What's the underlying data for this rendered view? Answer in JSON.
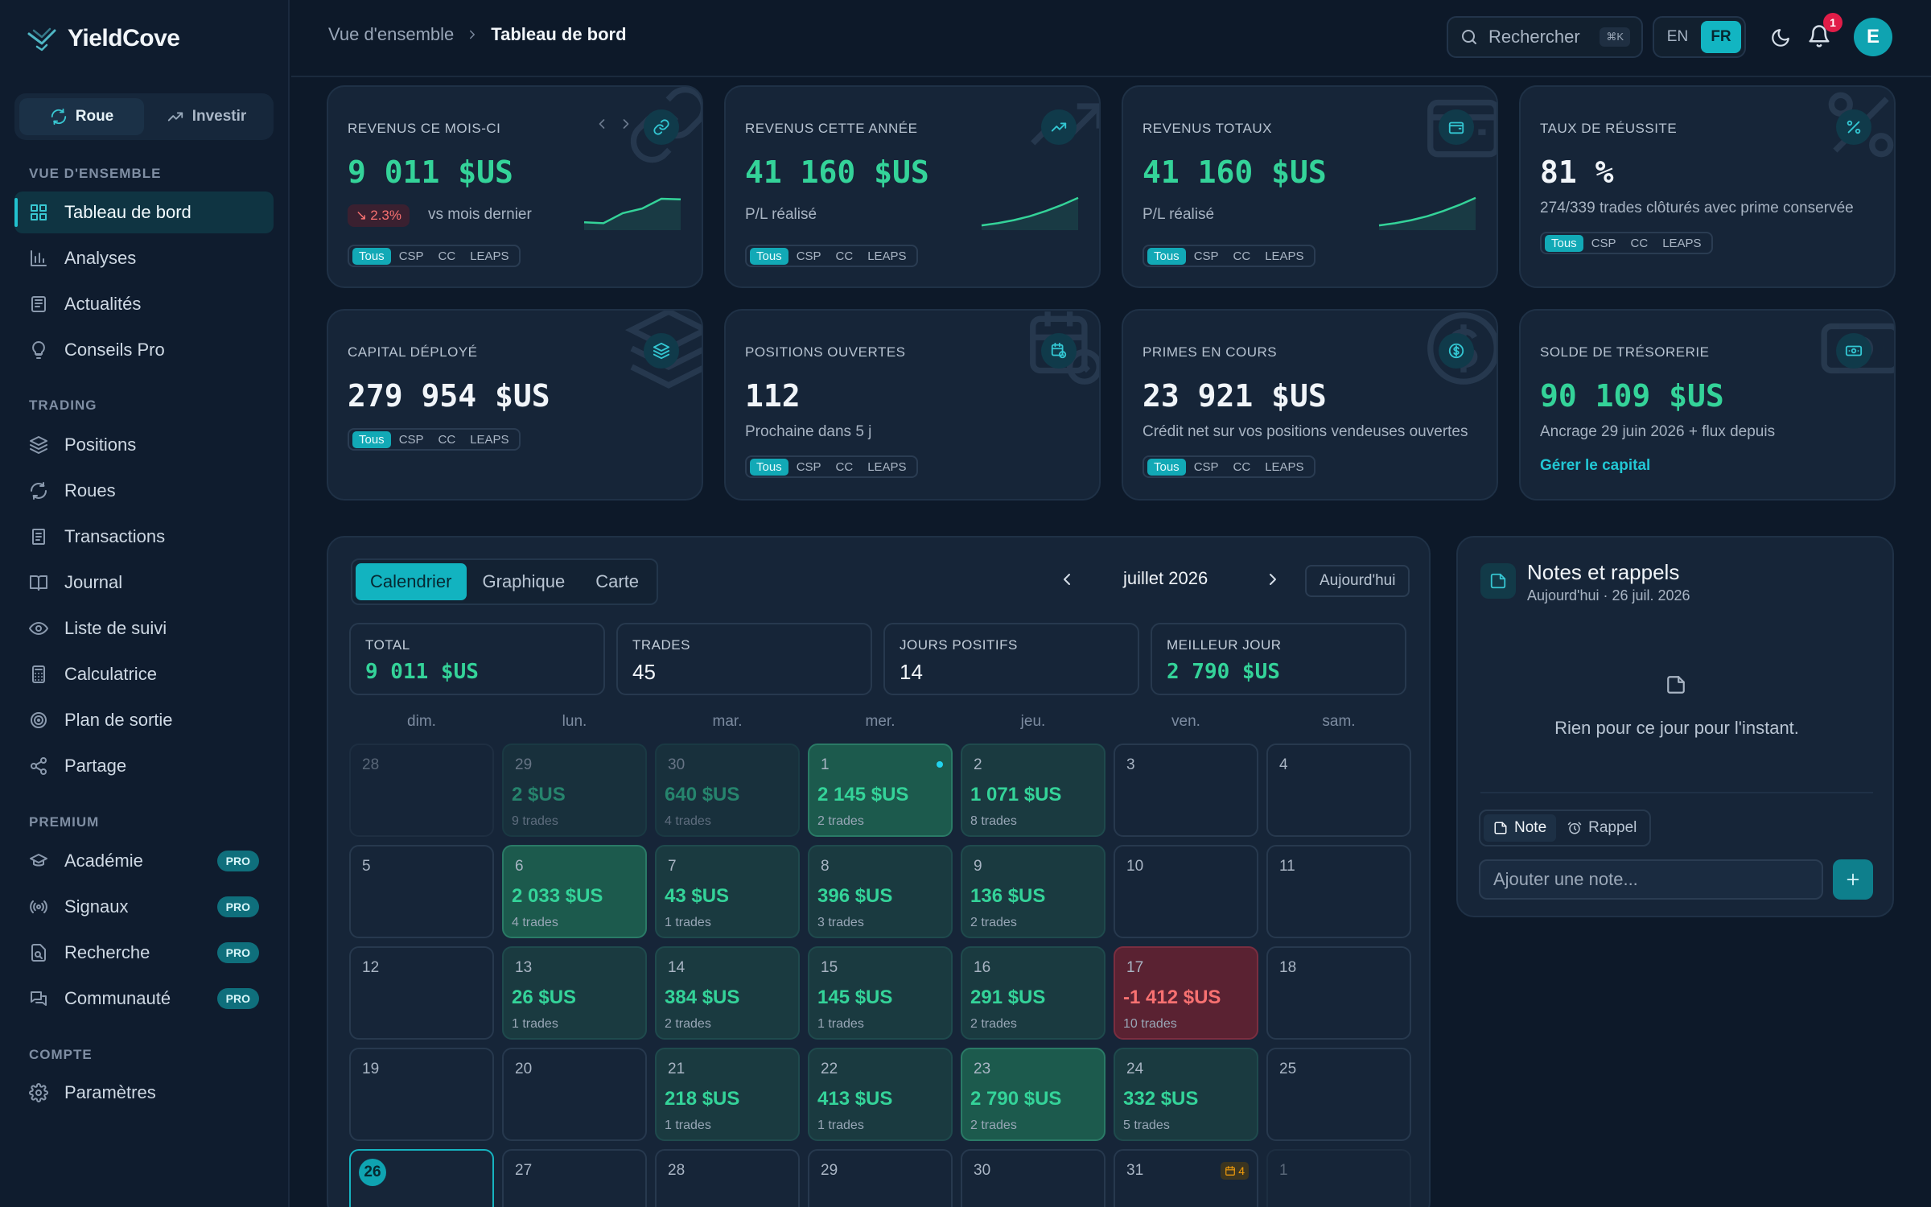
{
  "app": {
    "name": "YieldCove"
  },
  "sidebar": {
    "modes": [
      {
        "label": "Roue",
        "icon": "refresh-icon"
      },
      {
        "label": "Investir",
        "icon": "trend-icon"
      }
    ],
    "sections": {
      "overview": "VUE D'ENSEMBLE",
      "trading": "TRADING",
      "premium": "PREMIUM",
      "account": "COMPTE"
    },
    "overview_items": [
      {
        "label": "Tableau de bord",
        "icon": "dashboard-icon"
      },
      {
        "label": "Analyses",
        "icon": "bar-chart-icon"
      },
      {
        "label": "Actualités",
        "icon": "newspaper-icon"
      },
      {
        "label": "Conseils Pro",
        "icon": "lightbulb-icon"
      }
    ],
    "trading_items": [
      {
        "label": "Positions",
        "icon": "layers-icon"
      },
      {
        "label": "Roues",
        "icon": "refresh-icon"
      },
      {
        "label": "Transactions",
        "icon": "receipt-icon"
      },
      {
        "label": "Journal",
        "icon": "book-icon"
      },
      {
        "label": "Liste de suivi",
        "icon": "eye-icon"
      },
      {
        "label": "Calculatrice",
        "icon": "calculator-icon"
      },
      {
        "label": "Plan de sortie",
        "icon": "target-icon"
      },
      {
        "label": "Partage",
        "icon": "share-icon"
      }
    ],
    "premium_items": [
      {
        "label": "Académie",
        "icon": "graduation-cap-icon",
        "badge": "PRO"
      },
      {
        "label": "Signaux",
        "icon": "radio-icon",
        "badge": "PRO"
      },
      {
        "label": "Recherche",
        "icon": "file-search-icon",
        "badge": "PRO"
      },
      {
        "label": "Communauté",
        "icon": "chat-icon",
        "badge": "PRO"
      }
    ],
    "account_items": [
      {
        "label": "Paramètres",
        "icon": "gear-icon"
      }
    ]
  },
  "topbar": {
    "breadcrumb": [
      "Vue d'ensemble",
      "Tableau de bord"
    ],
    "search_placeholder": "Rechercher",
    "search_shortcut": "⌘K",
    "lang_options": [
      "EN",
      "FR"
    ],
    "lang_selected": "FR",
    "notifications_count": "1",
    "avatar_initial": "E"
  },
  "cards": [
    {
      "label": "REVENUS CE MOIS-CI",
      "value": "9 011  $US",
      "delta": "2.3%",
      "delta_note": "vs mois dernier",
      "icon": "link-icon",
      "chips": [
        "Tous",
        "CSP",
        "CC",
        "LEAPS"
      ]
    },
    {
      "label": "REVENUS CETTE ANNÉE",
      "value": "41 160  $US",
      "sub": "P/L réalisé",
      "icon": "trend-up-icon",
      "chips": [
        "Tous",
        "CSP",
        "CC",
        "LEAPS"
      ]
    },
    {
      "label": "REVENUS TOTAUX",
      "value": "41 160  $US",
      "sub": "P/L réalisé",
      "icon": "wallet-icon",
      "chips": [
        "Tous",
        "CSP",
        "CC",
        "LEAPS"
      ]
    },
    {
      "label": "TAUX DE RÉUSSITE",
      "value": "81  %",
      "sub": "274/339 trades clôturés avec prime conservée",
      "icon": "percent-icon",
      "chips": [
        "Tous",
        "CSP",
        "CC",
        "LEAPS"
      ]
    },
    {
      "label": "CAPITAL DÉPLOYÉ",
      "value": "279 954  $US",
      "icon": "layers-icon",
      "chips": [
        "Tous",
        "CSP",
        "CC",
        "LEAPS"
      ]
    },
    {
      "label": "POSITIONS OUVERTES",
      "value": "112",
      "sub": "Prochaine dans 5 j",
      "icon": "calendar-clock-icon",
      "chips": [
        "Tous",
        "CSP",
        "CC",
        "LEAPS"
      ]
    },
    {
      "label": "PRIMES EN COURS",
      "value": "23 921  $US",
      "sub": "Crédit net sur vos positions vendeuses ouvertes",
      "icon": "dollar-circle-icon",
      "chips": [
        "Tous",
        "CSP",
        "CC",
        "LEAPS"
      ]
    },
    {
      "label": "SOLDE DE TRÉSORERIE",
      "value": "90 109  $US",
      "sub": "Ancrage 29 juin 2026 + flux depuis",
      "link": "Gérer le capital",
      "icon": "banknote-icon"
    }
  ],
  "sparklines": [
    [
      0.15,
      0.12,
      0.45,
      0.6,
      0.92,
      0.9
    ],
    [
      0.05,
      0.12,
      0.22,
      0.35,
      0.52,
      0.72,
      0.95
    ],
    [
      0.05,
      0.12,
      0.22,
      0.35,
      0.52,
      0.72,
      0.95
    ]
  ],
  "colors": {
    "accent": "#12b3c0",
    "positive": "#34d399",
    "negative": "#f87171",
    "background": "#0d1929"
  },
  "calendar": {
    "tabs": [
      "Calendrier",
      "Graphique",
      "Carte"
    ],
    "active_tab": "Calendrier",
    "month": "juillet 2026",
    "today_label": "Aujourd'hui",
    "stats": [
      {
        "label": "TOTAL",
        "value": "9 011  $US"
      },
      {
        "label": "TRADES",
        "value": "45"
      },
      {
        "label": "JOURS POSITIFS",
        "value": "14"
      },
      {
        "label": "MEILLEUR JOUR",
        "value": "2 790  $US"
      }
    ],
    "weekdays": [
      "dim.",
      "lun.",
      "mar.",
      "mer.",
      "jeu.",
      "ven.",
      "sam."
    ],
    "weeks": [
      [
        {
          "d": "28",
          "o": true
        },
        {
          "d": "29",
          "o": true,
          "amt": "2 $US",
          "tr": "9 trades"
        },
        {
          "d": "30",
          "o": true,
          "amt": "640 $US",
          "tr": "4 trades"
        },
        {
          "d": "1",
          "amt": "2 145 $US",
          "tr": "2 trades",
          "strong": true,
          "dot": true
        },
        {
          "d": "2",
          "amt": "1 071 $US",
          "tr": "8 trades"
        },
        {
          "d": "3"
        },
        {
          "d": "4"
        }
      ],
      [
        {
          "d": "5"
        },
        {
          "d": "6",
          "amt": "2 033 $US",
          "tr": "4 trades",
          "strong": true
        },
        {
          "d": "7",
          "amt": "43 $US",
          "tr": "1 trades"
        },
        {
          "d": "8",
          "amt": "396 $US",
          "tr": "3 trades"
        },
        {
          "d": "9",
          "amt": "136 $US",
          "tr": "2 trades"
        },
        {
          "d": "10"
        },
        {
          "d": "11"
        }
      ],
      [
        {
          "d": "12"
        },
        {
          "d": "13",
          "amt": "26 $US",
          "tr": "1 trades"
        },
        {
          "d": "14",
          "amt": "384 $US",
          "tr": "2 trades"
        },
        {
          "d": "15",
          "amt": "145 $US",
          "tr": "1 trades"
        },
        {
          "d": "16",
          "amt": "291 $US",
          "tr": "2 trades"
        },
        {
          "d": "17",
          "amt": "-1 412 $US",
          "tr": "10 trades",
          "neg": true
        },
        {
          "d": "18"
        }
      ],
      [
        {
          "d": "19"
        },
        {
          "d": "20"
        },
        {
          "d": "21",
          "amt": "218 $US",
          "tr": "1 trades"
        },
        {
          "d": "22",
          "amt": "413 $US",
          "tr": "1 trades"
        },
        {
          "d": "23",
          "amt": "2 790 $US",
          "tr": "2 trades",
          "strong": true
        },
        {
          "d": "24",
          "amt": "332 $US",
          "tr": "5 trades"
        },
        {
          "d": "25"
        }
      ],
      [
        {
          "d": "26",
          "today": true
        },
        {
          "d": "27"
        },
        {
          "d": "28"
        },
        {
          "d": "29"
        },
        {
          "d": "30"
        },
        {
          "d": "31",
          "earn": "4"
        },
        {
          "d": "1",
          "o": true
        }
      ]
    ]
  },
  "notes": {
    "title": "Notes et rappels",
    "date": "Aujourd'hui · 26 juil. 2026",
    "empty": "Rien pour ce jour pour l'instant.",
    "toggle": [
      "Note",
      "Rappel"
    ],
    "input_placeholder": "Ajouter une note..."
  }
}
